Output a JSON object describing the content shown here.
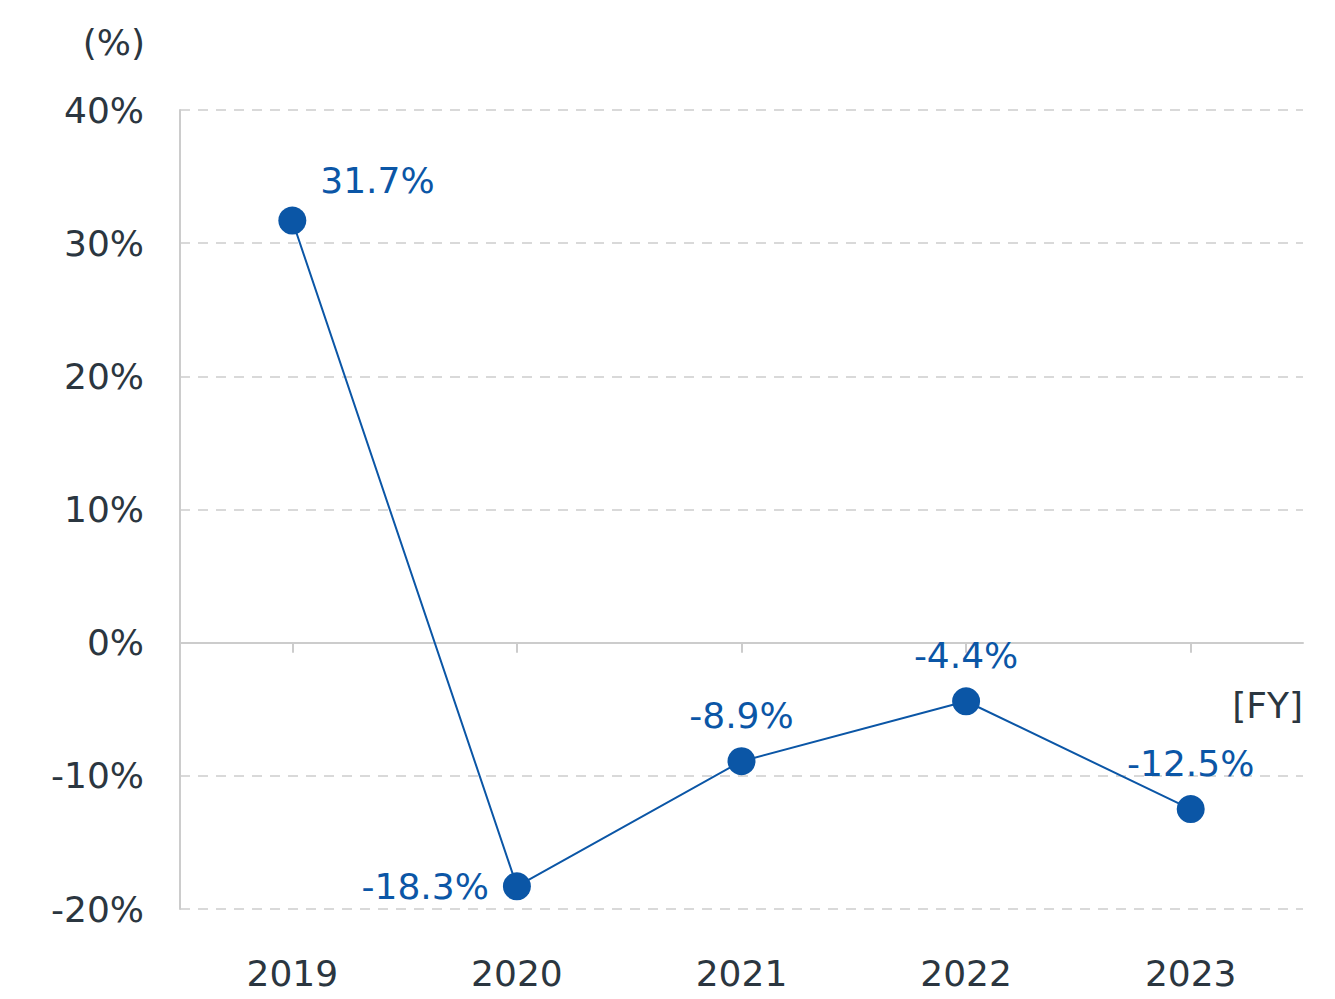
{
  "chart_data": {
    "type": "line",
    "x_label": "[FY]",
    "y_label": "(%)",
    "categories": [
      "2019",
      "2020",
      "2021",
      "2022",
      "2023"
    ],
    "values": [
      31.7,
      -18.3,
      -8.9,
      -4.4,
      -12.5
    ],
    "value_labels": [
      "31.7%",
      "-18.3%",
      "-8.9%",
      "-4.4%",
      "-12.5%"
    ],
    "color": "#0b56a6",
    "ylim": [
      -20,
      40
    ],
    "yticks": [
      {
        "value": -20,
        "label": "-20%"
      },
      {
        "value": -10,
        "label": "-10%"
      },
      {
        "value": 0,
        "label": "0%"
      },
      {
        "value": 10,
        "label": "10%"
      },
      {
        "value": 20,
        "label": "20%"
      },
      {
        "value": 30,
        "label": "30%"
      },
      {
        "value": 40,
        "label": "40%"
      }
    ],
    "grid": true,
    "data_labels": true,
    "marker": "circle"
  }
}
